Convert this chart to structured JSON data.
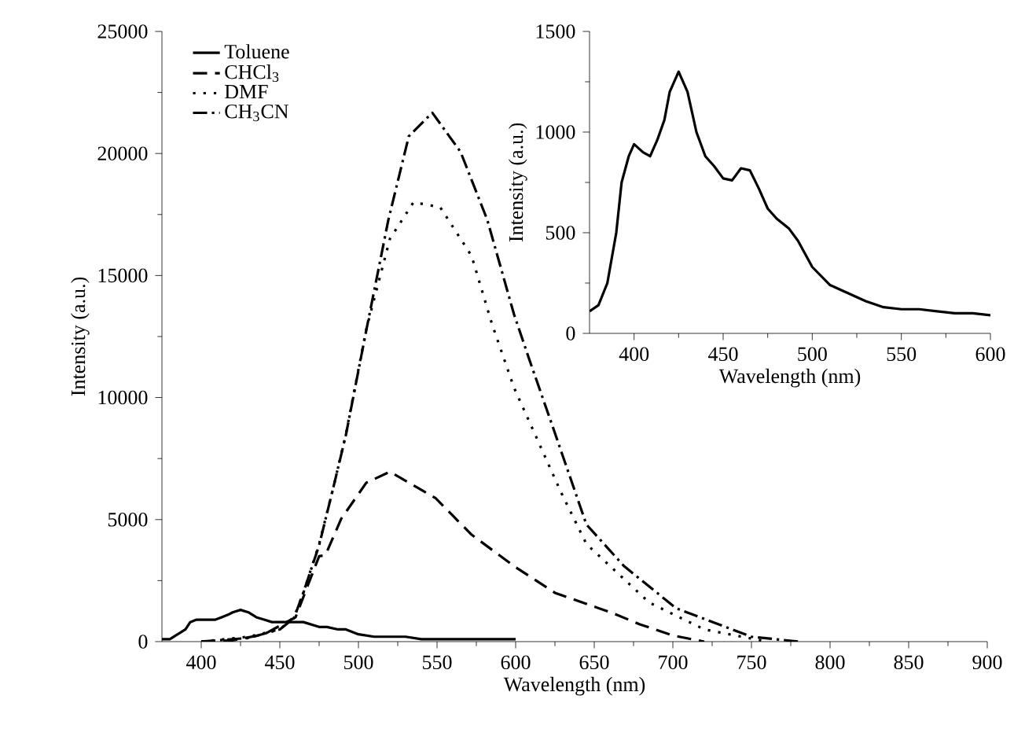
{
  "chart_data": [
    {
      "type": "line",
      "xlabel": "Wavelength (nm)",
      "ylabel": "Intensity (a.u.)",
      "xlim": [
        375,
        900
      ],
      "ylim": [
        0,
        25000
      ],
      "xticks": [
        400,
        450,
        500,
        550,
        600,
        650,
        700,
        750,
        800,
        850,
        900
      ],
      "yticks": [
        0,
        5000,
        10000,
        15000,
        20000,
        25000
      ],
      "legend": "top left",
      "series": [
        {
          "name": "Toluene",
          "color": "#000000",
          "line_style": "solid",
          "x": [
            375,
            380,
            385,
            390,
            393,
            397,
            400,
            405,
            409,
            413,
            417,
            420,
            425,
            430,
            435,
            440,
            445,
            450,
            455,
            460,
            465,
            470,
            475,
            480,
            487,
            492,
            500,
            510,
            520,
            530,
            540,
            550,
            560,
            570,
            580,
            590,
            600
          ],
          "values": [
            100,
            100,
            300,
            500,
            800,
            900,
            900,
            900,
            900,
            1000,
            1100,
            1200,
            1300,
            1200,
            1000,
            900,
            800,
            800,
            800,
            800,
            800,
            700,
            600,
            600,
            500,
            500,
            300,
            200,
            200,
            200,
            100,
            100,
            100,
            100,
            100,
            100,
            100
          ]
        },
        {
          "name": "CHCl$_{3}$",
          "color": "#000000",
          "line_style": "dashed",
          "x": [
            400,
            420,
            440,
            460,
            475,
            479,
            489,
            505,
            520,
            549,
            572,
            599,
            625,
            662,
            679,
            700,
            720
          ],
          "values": [
            0,
            50,
            300,
            1000,
            3500,
            3540,
            5030,
            6510,
            6960,
            5880,
            4380,
            3090,
            2000,
            1160,
            710,
            250,
            0
          ]
        },
        {
          "name": "DMF",
          "color": "#000000",
          "line_style": "dotted",
          "x": [
            400,
            430,
            450,
            459,
            465,
            475,
            484,
            492,
            505,
            520,
            535,
            552,
            572,
            585,
            599,
            629,
            645,
            685,
            720,
            760
          ],
          "values": [
            0,
            200,
            500,
            1000,
            2000,
            4000,
            6300,
            8500,
            12800,
            16500,
            18000,
            17800,
            15800,
            13000,
            10400,
            6100,
            4000,
            1600,
            500,
            0
          ]
        },
        {
          "name": "CH$_{3}$CN",
          "color": "#000000",
          "line_style": "dashdot",
          "x": [
            400,
            430,
            450,
            459,
            465,
            475,
            484,
            492,
            505,
            519,
            532,
            547,
            565,
            582,
            599,
            609,
            622,
            645,
            669,
            702,
            750,
            780
          ],
          "values": [
            0,
            150,
            500,
            960,
            2020,
            3950,
            6310,
            8460,
            12760,
            17270,
            20700,
            21670,
            20060,
            17270,
            13400,
            11500,
            9100,
            4800,
            3090,
            1370,
            200,
            0
          ]
        }
      ]
    },
    {
      "type": "line",
      "xlabel": "Wavelength (nm)",
      "ylabel": "Intensity (a.u.)",
      "xlim": [
        375,
        600
      ],
      "ylim": [
        0,
        1500
      ],
      "xticks": [
        400,
        450,
        500,
        550,
        600
      ],
      "yticks": [
        0,
        500,
        1000,
        1500
      ],
      "series": [
        {
          "color": "#000000",
          "line_style": "solid",
          "x": [
            375,
            380,
            385,
            390,
            393,
            397,
            400,
            405,
            409,
            413,
            417,
            420,
            425,
            430,
            435,
            440,
            445,
            450,
            455,
            460,
            465,
            470,
            475,
            480,
            487,
            492,
            500,
            510,
            520,
            530,
            540,
            550,
            560,
            570,
            580,
            590,
            600
          ],
          "values": [
            110,
            140,
            250,
            500,
            750,
            880,
            940,
            900,
            880,
            960,
            1060,
            1200,
            1300,
            1200,
            1000,
            880,
            830,
            770,
            760,
            820,
            810,
            720,
            620,
            570,
            520,
            460,
            330,
            240,
            200,
            160,
            130,
            120,
            120,
            110,
            100,
            100,
            90
          ]
        }
      ]
    }
  ]
}
